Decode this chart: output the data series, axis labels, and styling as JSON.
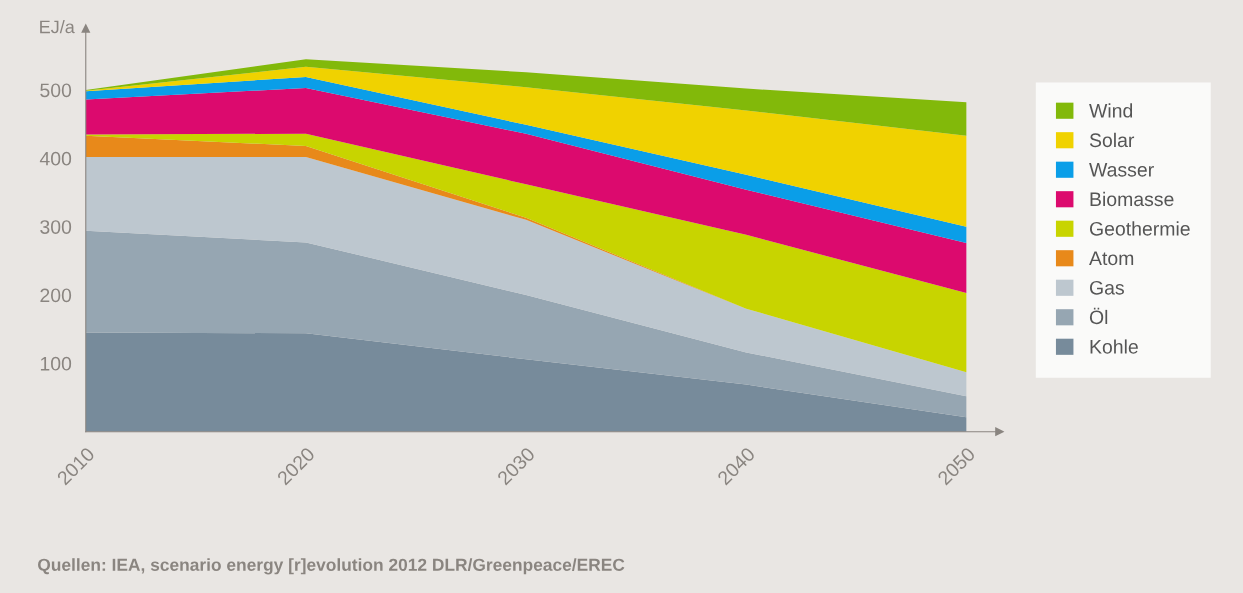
{
  "chart_data": {
    "type": "area",
    "stacked": true,
    "ylabel": "EJ/a",
    "x": [
      2010,
      2020,
      2030,
      2040,
      2050
    ],
    "series": [
      {
        "name": "Kohle",
        "color": "#778b9b",
        "values": [
          145,
          144,
          106,
          69,
          21
        ]
      },
      {
        "name": "Öl",
        "color": "#96a6b2",
        "values": [
          149,
          133,
          94,
          47,
          31
        ]
      },
      {
        "name": "Gas",
        "color": "#bdc7cf",
        "values": [
          108,
          125,
          110,
          64,
          35
        ]
      },
      {
        "name": "Atom",
        "color": "#e8891a",
        "values": [
          31,
          16,
          3,
          0,
          0
        ]
      },
      {
        "name": "Geothermie",
        "color": "#c8d400",
        "values": [
          2,
          18,
          49,
          108,
          116
        ]
      },
      {
        "name": "Biomasse",
        "color": "#dc0a6e",
        "values": [
          51,
          67,
          74,
          66,
          73
        ]
      },
      {
        "name": "Wasser",
        "color": "#0a9ee8",
        "values": [
          12,
          16,
          13,
          22,
          24
        ]
      },
      {
        "name": "Solar",
        "color": "#f0d200",
        "values": [
          1,
          15,
          55,
          94,
          133
        ]
      },
      {
        "name": "Wind",
        "color": "#82b90a",
        "values": [
          1,
          11,
          22,
          32,
          49
        ]
      }
    ],
    "xlim": [
      2010,
      2051.5
    ],
    "xticks": [
      2010,
      2020,
      2030,
      2040,
      2050
    ],
    "ylim": [
      0,
      590
    ],
    "yticks": [
      100,
      200,
      300,
      400,
      500
    ],
    "grid": false,
    "legend": "right",
    "annotations": [
      "Quellen: IEA, scenario energy [r]evolution 2012 DLR/Greenpeace/EREC"
    ]
  }
}
